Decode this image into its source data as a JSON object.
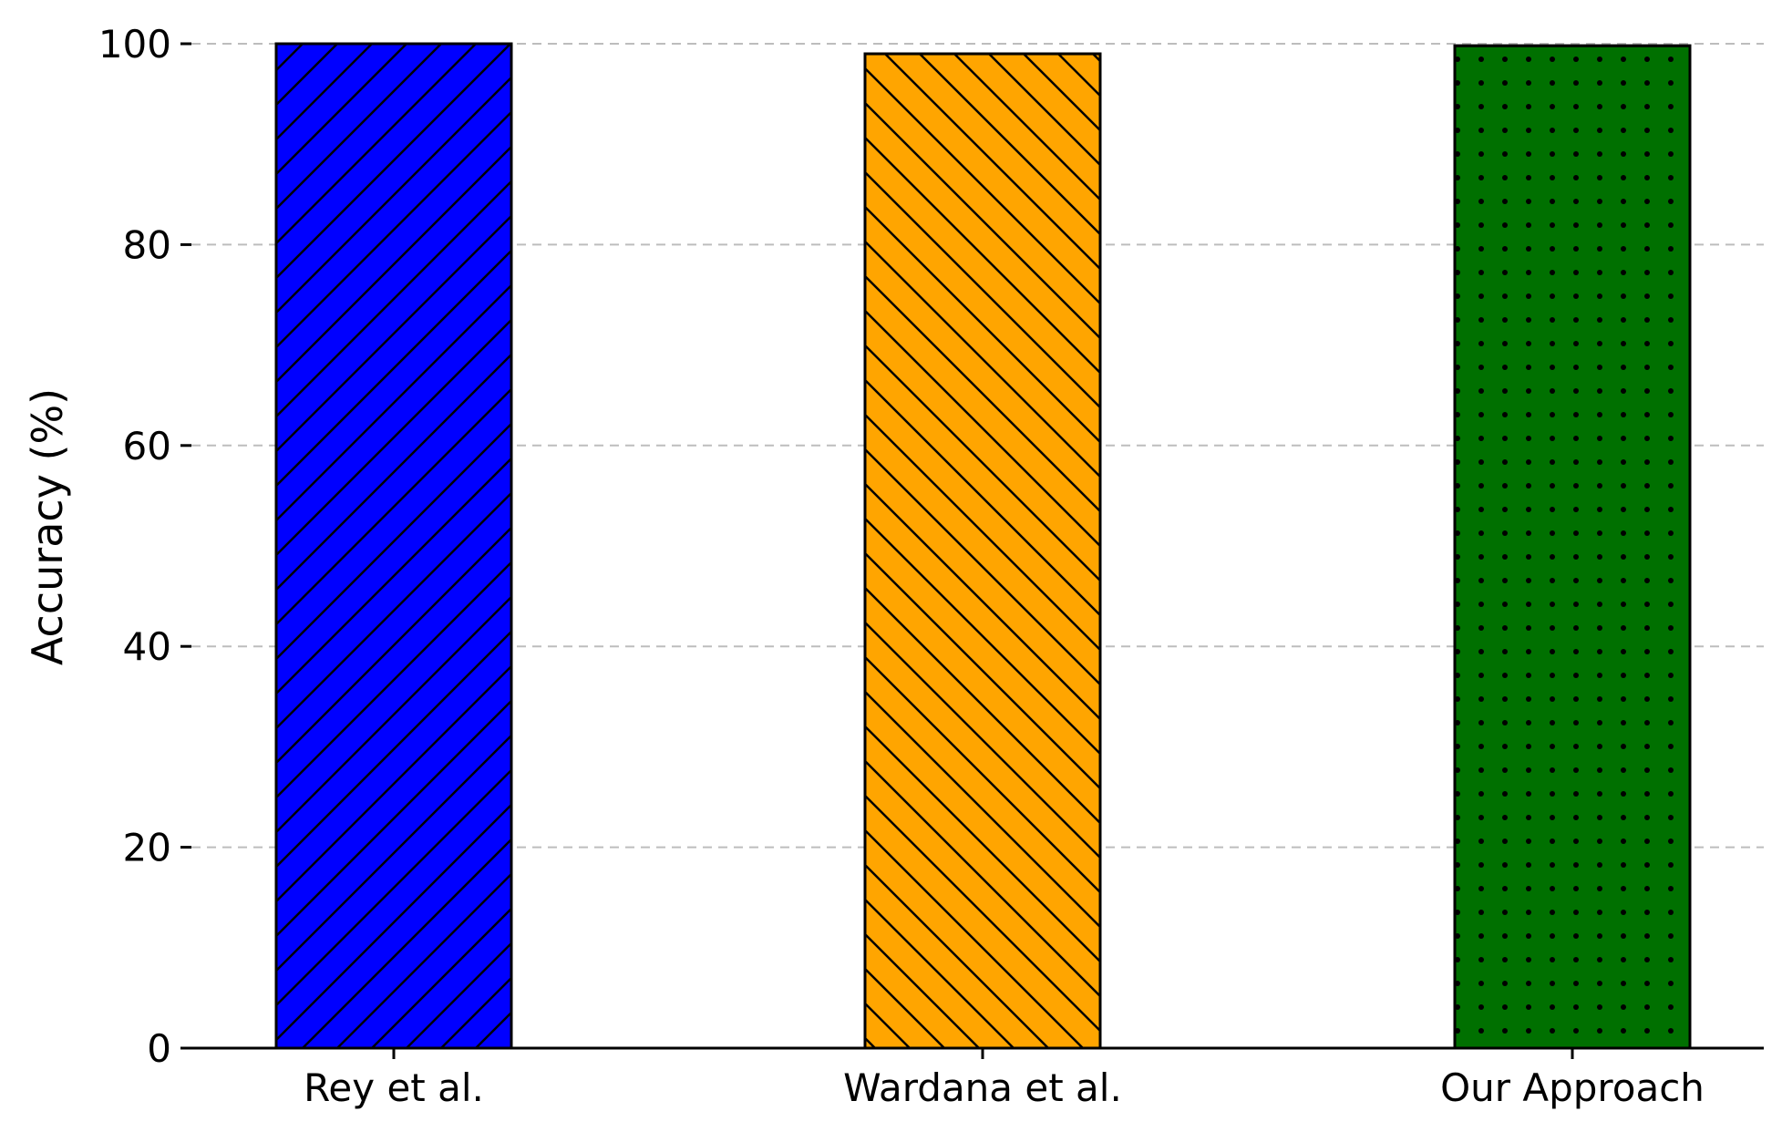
{
  "chart_data": {
    "type": "bar",
    "categories": [
      "Rey et al.",
      "Wardana et al.",
      "Our Approach"
    ],
    "values": [
      100,
      99,
      99.8
    ],
    "colors": [
      "#0000ff",
      "#ffa500",
      "#007000"
    ],
    "patterns": [
      "forward-hatch",
      "backward-hatch",
      "dots"
    ],
    "title": "",
    "xlabel": "",
    "ylabel": "Accuracy (%)",
    "ylim": [
      0,
      100
    ],
    "yticks": [
      0,
      20,
      40,
      60,
      80,
      100
    ],
    "grid": "horizontal dashed",
    "legend": "none"
  }
}
